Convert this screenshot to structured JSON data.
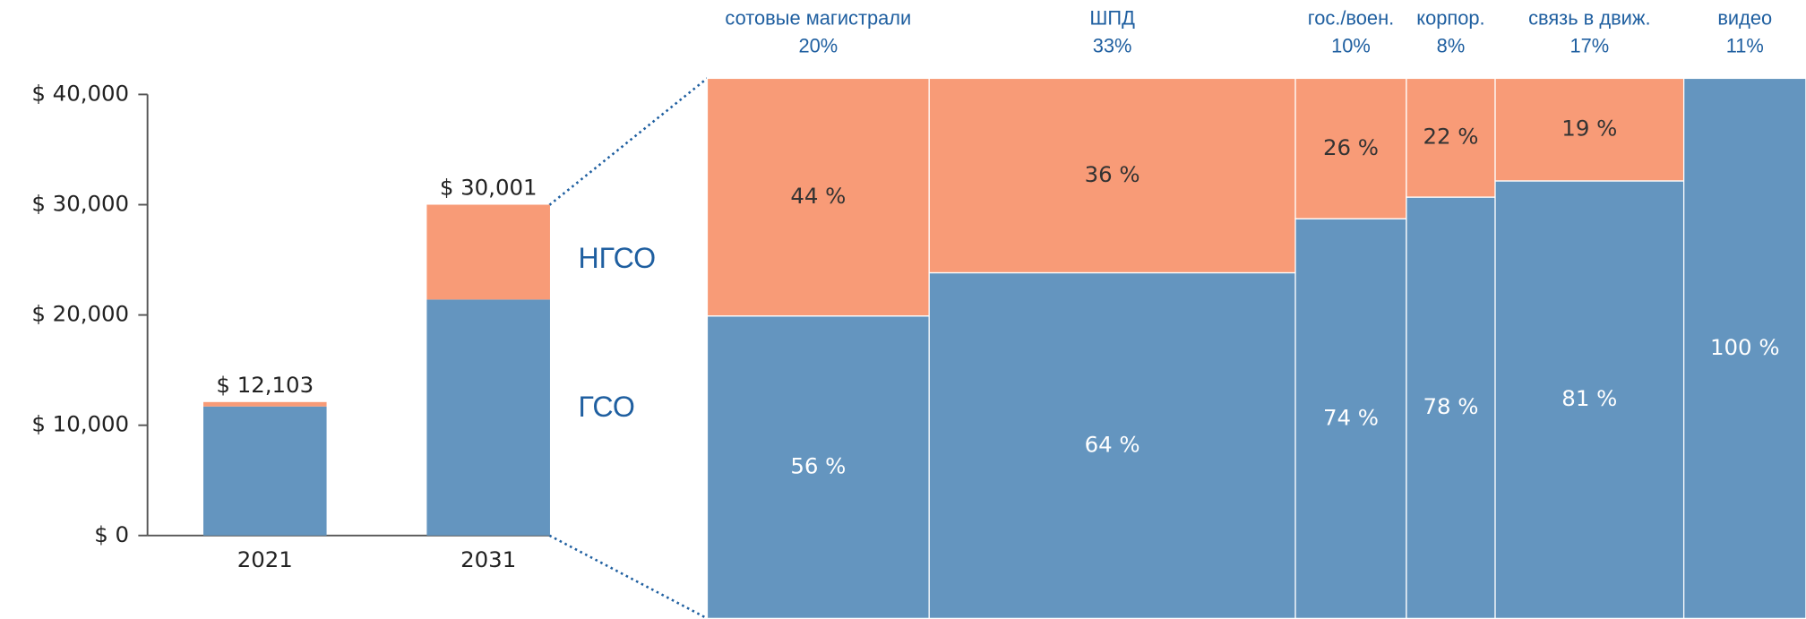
{
  "chart_data": [
    {
      "type": "stacked_bar",
      "categories": [
        "2021",
        "2031"
      ],
      "series": [
        {
          "name": "ГСО",
          "color": "#6495bf",
          "values": [
            11700,
            21400
          ]
        },
        {
          "name": "НГСО",
          "color": "#f89b77",
          "values": [
            403,
            8601
          ]
        }
      ],
      "totals": [
        12103,
        30001
      ],
      "total_labels": [
        "$ 12,103",
        "$ 30,001"
      ],
      "ylim": [
        0,
        40000
      ],
      "yticks": [
        {
          "value": 0,
          "label": "$ 0"
        },
        {
          "value": 10000,
          "label": "$ 10,000"
        },
        {
          "value": 20000,
          "label": "$ 20,000"
        },
        {
          "value": 30000,
          "label": "$ 30,000"
        },
        {
          "value": 40000,
          "label": "$ 40,000"
        }
      ]
    },
    {
      "type": "mekko",
      "categories": [
        "сотовые магистрали",
        "ШПД",
        "гос./воен.",
        "корпор.",
        "связь в движ.",
        "видео"
      ],
      "widths": [
        20,
        33,
        10,
        8,
        17,
        11
      ],
      "width_labels": [
        "20%",
        "33%",
        "10%",
        "8%",
        "17%",
        "11%"
      ],
      "series": [
        {
          "name": "ГСО",
          "color": "#6495bf",
          "values": [
            56,
            64,
            74,
            78,
            81,
            100
          ],
          "value_labels": [
            "56 %",
            "64 %",
            "74 %",
            "78 %",
            "81 %",
            "100 %"
          ]
        },
        {
          "name": "НГСО",
          "color": "#f89b77",
          "values": [
            44,
            36,
            26,
            22,
            19,
            null
          ],
          "value_labels": [
            "44 %",
            "36 %",
            "26 %",
            "22 %",
            "19 %",
            null
          ]
        }
      ]
    }
  ]
}
